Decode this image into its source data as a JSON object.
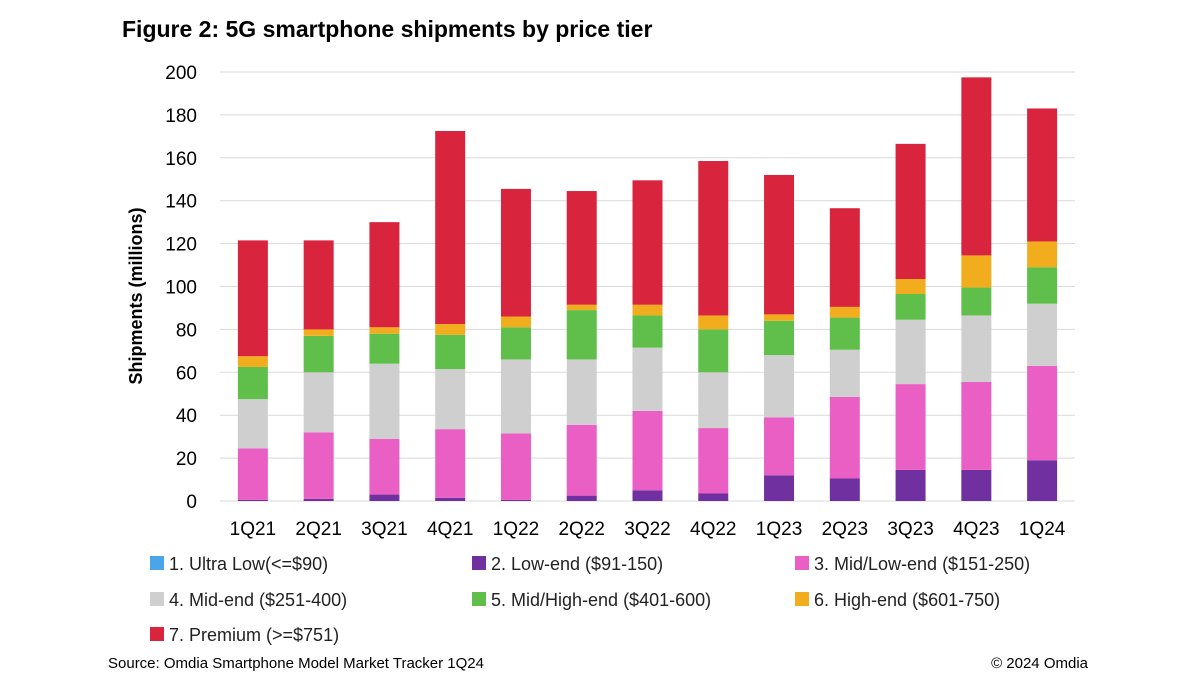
{
  "chart_data": {
    "type": "bar",
    "stacked": true,
    "title": "Figure 2: 5G smartphone shipments by price tier",
    "xlabel": "",
    "ylabel": "Shipments (millions)",
    "ylim": [
      0,
      200
    ],
    "yticks": [
      "0",
      "20",
      "40",
      "60",
      "80",
      "100",
      "120",
      "140",
      "160",
      "180",
      "200"
    ],
    "grid": true,
    "categories": [
      "1Q21",
      "2Q21",
      "3Q21",
      "4Q21",
      "1Q22",
      "2Q22",
      "3Q22",
      "4Q22",
      "1Q23",
      "2Q23",
      "3Q23",
      "4Q23",
      "1Q24"
    ],
    "series": [
      {
        "name": "1. Ultra Low(<=$90)",
        "color": "#4aa6e8",
        "values": [
          0,
          0,
          0,
          0,
          0,
          0,
          0,
          0,
          0,
          0,
          0,
          0,
          0
        ]
      },
      {
        "name": "2. Low-end ($91-150)",
        "color": "#7030a0",
        "values": [
          0.5,
          1,
          3,
          1.5,
          0.5,
          2.5,
          5,
          3.5,
          12,
          10.5,
          14.5,
          14.5,
          19
        ]
      },
      {
        "name": "3. Mid/Low-end ($151-250)",
        "color": "#ea5fc3",
        "values": [
          24,
          31,
          26,
          32,
          31,
          33,
          37,
          30.5,
          27,
          38,
          40,
          41,
          44
        ]
      },
      {
        "name": "4. Mid-end ($251-400)",
        "color": "#cfcfcf",
        "values": [
          23,
          28,
          35,
          28,
          34.5,
          30.5,
          29.5,
          26,
          29,
          22,
          30,
          31,
          29
        ]
      },
      {
        "name": "5. Mid/High-end ($401-600)",
        "color": "#5fbf4a",
        "values": [
          15,
          17,
          14,
          16,
          15,
          23,
          15,
          20,
          16,
          15,
          12,
          13,
          17
        ]
      },
      {
        "name": "6. High-end ($601-750)",
        "color": "#f2ad1f",
        "values": [
          5,
          3,
          3,
          5,
          5,
          2.5,
          5,
          6.5,
          3,
          5,
          7,
          15,
          12
        ]
      },
      {
        "name": "7. Premium (>=$751)",
        "color": "#d9243d",
        "values": [
          54,
          41.5,
          49,
          90,
          59.5,
          53,
          58,
          72,
          65,
          46,
          63,
          83,
          62
        ]
      }
    ],
    "legend_position": "bottom"
  },
  "footer": {
    "source": "Source: Omdia Smartphone Model Market Tracker 1Q24",
    "copyright": "© 2024 Omdia"
  }
}
